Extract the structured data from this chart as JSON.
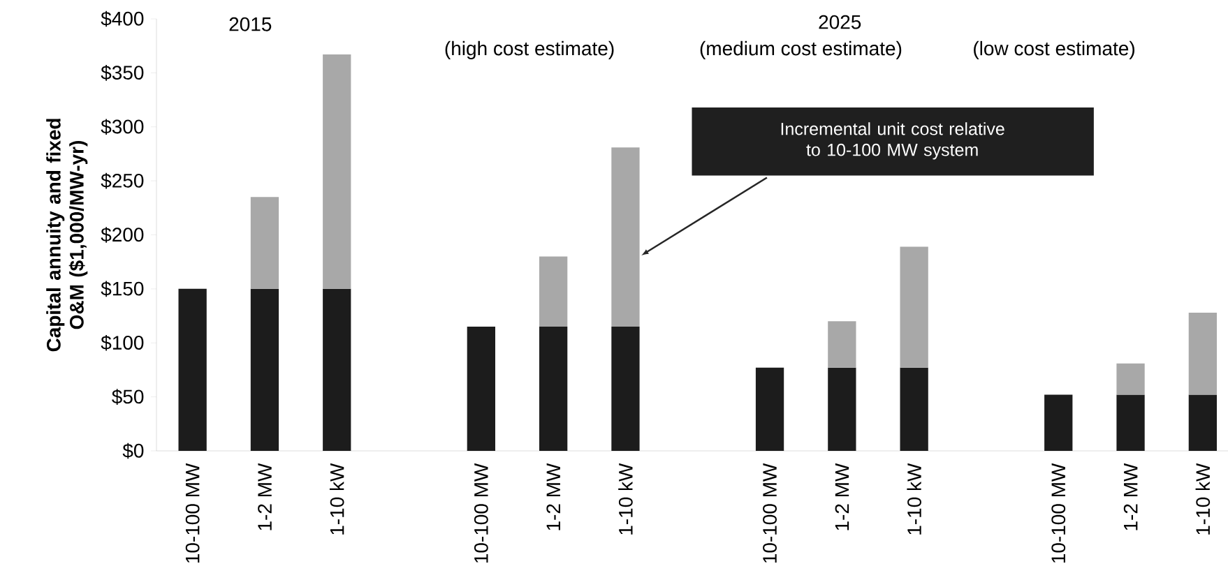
{
  "chart_data": {
    "type": "bar",
    "stacked": true,
    "ylabel": "Capital annuity and fixed O&M ($1,000/MW-yr)",
    "categories": [
      "10-100 MW",
      "1-2 MW",
      "1-10 kW",
      null,
      "10-100 MW",
      "1-2 MW",
      "1-10 kW",
      null,
      "10-100 MW",
      "1-2 MW",
      "1-10 kW",
      null,
      "10-100 MW",
      "1-2 MW",
      "1-10 kW"
    ],
    "series": [
      {
        "color": "#1c1c1c",
        "values": [
          150,
          150,
          150,
          null,
          115,
          115,
          115,
          null,
          77,
          77,
          77,
          null,
          52,
          52,
          52
        ]
      },
      {
        "color": "#a8a8a8",
        "values": [
          null,
          85,
          217,
          null,
          null,
          65,
          166,
          null,
          null,
          43,
          112,
          null,
          null,
          29,
          76
        ]
      }
    ],
    "ylim": [
      0,
      400
    ],
    "yticks": [
      {
        "value": 0,
        "label": "$0"
      },
      {
        "value": 50,
        "label": "$50"
      },
      {
        "value": 100,
        "label": "$100"
      },
      {
        "value": 150,
        "label": "$150"
      },
      {
        "value": 200,
        "label": "$200"
      },
      {
        "value": 250,
        "label": "$250"
      },
      {
        "value": 300,
        "label": "$300"
      },
      {
        "value": 350,
        "label": "$350"
      },
      {
        "value": 400,
        "label": "$400"
      }
    ],
    "annotations": [
      "2015",
      "(high cost estimate)",
      "2025",
      "(medium cost estimate)",
      "(low cost estimate)",
      "Incremental unit cost relative to 10-100 MW system"
    ]
  }
}
